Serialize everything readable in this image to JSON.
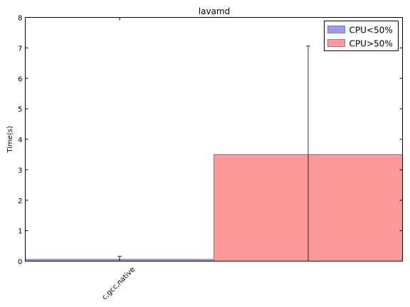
{
  "chart_data": {
    "type": "bar",
    "title": "lavamd",
    "xlabel": "",
    "ylabel": "Time(s)",
    "ylim": [
      0,
      8
    ],
    "yticks": [
      0,
      1,
      2,
      3,
      4,
      5,
      6,
      7,
      8
    ],
    "categories": [
      "c,gcc,native"
    ],
    "series": [
      {
        "name": "CPU<50%",
        "values": [
          0.06
        ],
        "errors": [
          0.1
        ],
        "color": "#9999ff"
      },
      {
        "name": "CPU>50%",
        "values": [
          3.5
        ],
        "errors": [
          3.56
        ],
        "color": "#ff9999"
      }
    ],
    "legend_position": "top-right",
    "grid": false
  }
}
